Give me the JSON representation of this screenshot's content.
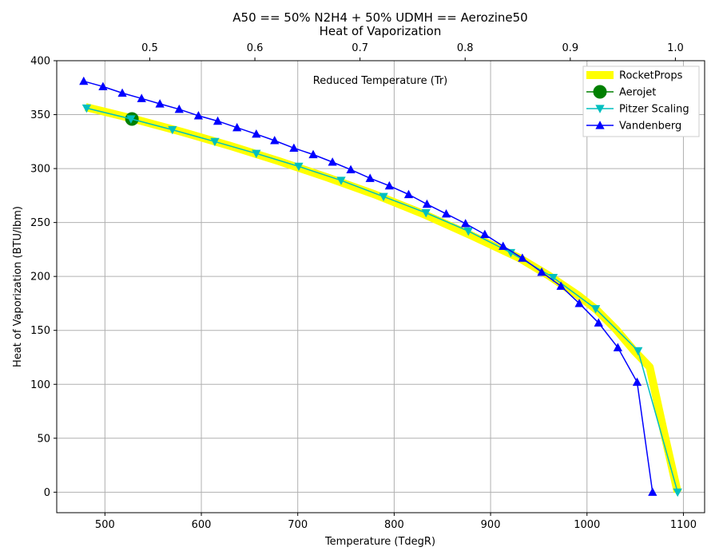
{
  "chart_data": {
    "type": "line",
    "title": "A50 == 50% N2H4 + 50% UDMH == Aerozine50",
    "subtitle": "Heat of Vaporization",
    "xlabel": "Temperature (TdegR)",
    "ylabel": "Heat of Vaporization (BTU/lbm)",
    "x2label": "Reduced Temperature (Tr)",
    "xlim": [
      450,
      1122
    ],
    "ylim": [
      -19,
      400
    ],
    "x2lim": [
      0.4115,
      1.0278
    ],
    "xticks": [
      500,
      600,
      700,
      800,
      900,
      1000,
      1100
    ],
    "yticks": [
      0,
      50,
      100,
      150,
      200,
      250,
      300,
      350,
      400
    ],
    "x2ticks": [
      0.5,
      0.6,
      0.7,
      0.8,
      0.9,
      1.0
    ],
    "x2tick_labels": [
      "0.5",
      "0.6",
      "0.7",
      "0.8",
      "0.9",
      "1.0"
    ],
    "grid": true,
    "legend_position": "top-right",
    "series": [
      {
        "name": "RocketProps",
        "color": "#ffff00",
        "marker": "none",
        "x": [
          480,
          530,
          580,
          630,
          680,
          730,
          780,
          830,
          880,
          930,
          960,
          990,
          1010,
          1030,
          1050,
          1065,
          1080,
          1094
        ],
        "y": [
          357,
          346,
          334,
          321,
          307,
          292,
          276,
          258,
          238,
          217,
          201,
          183,
          169,
          151,
          130,
          116,
          55,
          0
        ]
      },
      {
        "name": "Aerojet",
        "color": "#008000",
        "marker": "circle",
        "x": [
          528
        ],
        "y": [
          346
        ]
      },
      {
        "name": "Pitzer Scaling",
        "color": "#00bfbf",
        "marker": "triangle-down",
        "x": [
          481,
          527,
          570,
          614,
          657,
          701,
          745,
          789,
          833,
          877,
          921,
          965,
          1009,
          1053,
          1094
        ],
        "y": [
          356,
          346,
          336,
          325,
          314,
          302,
          289,
          274,
          259,
          242,
          222,
          199,
          170,
          131,
          0
        ]
      },
      {
        "name": "Vandenberg",
        "color": "#0000ff",
        "marker": "triangle-up",
        "x": [
          478,
          498,
          518,
          538,
          557,
          577,
          597,
          617,
          637,
          657,
          676,
          696,
          716,
          736,
          755,
          775,
          795,
          815,
          834,
          854,
          874,
          894,
          913,
          933,
          953,
          973,
          992,
          1012,
          1032,
          1052,
          1068
        ],
        "y": [
          381,
          376,
          370,
          365,
          360,
          355,
          349,
          344,
          338,
          332,
          326,
          319,
          313,
          306,
          299,
          291,
          284,
          276,
          267,
          258,
          249,
          239,
          228,
          217,
          204,
          191,
          175,
          157,
          134,
          102,
          0
        ]
      }
    ]
  }
}
